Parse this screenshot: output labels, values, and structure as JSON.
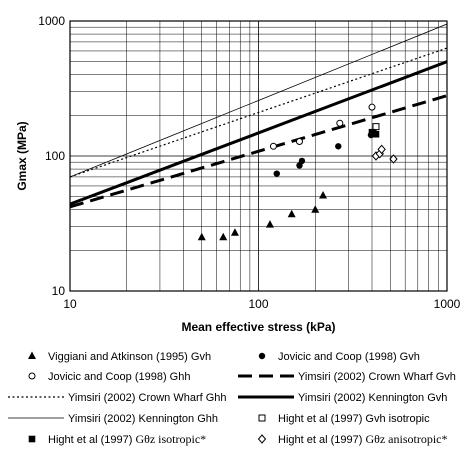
{
  "chart_data": {
    "type": "scatter",
    "title": "",
    "xlabel": "Mean effective stress (kPa)",
    "ylabel": "Gmax (MPa)",
    "xscale": "log",
    "yscale": "log",
    "xlim": [
      10,
      1000
    ],
    "ylim": [
      10,
      1000
    ],
    "grid": true,
    "x_tick_labels": [
      "10",
      "100",
      "1000"
    ],
    "y_tick_labels": [
      "10",
      "100",
      "1000"
    ],
    "legend_position": "below plot",
    "series": [
      {
        "name": "Viggiani and Atkinson (1995) Gvh",
        "kind": "points",
        "marker": "triangle",
        "x": [
          50,
          65,
          75,
          115,
          150,
          200,
          220
        ],
        "y": [
          25,
          25,
          27,
          31,
          37,
          40,
          51
        ]
      },
      {
        "name": "Jovicic and Coop (1998) Gvh",
        "kind": "points",
        "marker": "filled-circle",
        "x": [
          125,
          165,
          170,
          265,
          395,
          410
        ],
        "y": [
          74,
          85,
          92,
          118,
          143,
          150
        ]
      },
      {
        "name": "Jovicic and Coop (1998) Ghh",
        "kind": "points",
        "marker": "open-circle",
        "x": [
          120,
          165,
          270,
          400
        ],
        "y": [
          118,
          128,
          175,
          230
        ]
      },
      {
        "name": "Yimsiri (2002) Crown Wharf Gvh",
        "kind": "line",
        "style": "long-dash",
        "x": [
          10,
          1000
        ],
        "y": [
          42,
          280
        ]
      },
      {
        "name": "Yimsiri (2002) Crown Wharf Ghh",
        "kind": "line",
        "style": "dotted",
        "x": [
          10,
          1000
        ],
        "y": [
          70,
          630
        ]
      },
      {
        "name": "Yimsiri (2002) Kennington Gvh",
        "kind": "line",
        "style": "thick-solid",
        "x": [
          10,
          1000
        ],
        "y": [
          44,
          500
        ]
      },
      {
        "name": "Yimsiri (2002) Kennington Ghh",
        "kind": "line",
        "style": "thin-solid",
        "x": [
          10,
          1000
        ],
        "y": [
          70,
          950
        ]
      },
      {
        "name": "Hight et al (1997) Gvh isotropic",
        "kind": "points",
        "marker": "open-square",
        "x": [
          420
        ],
        "y": [
          165
        ]
      },
      {
        "name": "Hight et al (1997) Gθz isotropic*",
        "kind": "points",
        "marker": "filled-square",
        "x": [
          400,
          420
        ],
        "y": [
          150,
          145
        ]
      },
      {
        "name": "Hight et al (1997) Gθz anisotropic*",
        "kind": "points",
        "marker": "open-diamond",
        "x": [
          420,
          440,
          450,
          520
        ],
        "y": [
          100,
          104,
          112,
          95
        ]
      }
    ]
  },
  "legend": {
    "items": [
      {
        "col": 0,
        "row": 0,
        "marker": "triangle",
        "label": "Viggiani and Atkinson (1995) Gvh"
      },
      {
        "col": 1,
        "row": 0,
        "marker": "filled-circle",
        "label": "Jovicic and Coop (1998) Gvh"
      },
      {
        "col": 0,
        "row": 1,
        "marker": "open-circle",
        "label": "Jovicic and Coop (1998) Ghh"
      },
      {
        "col": 1,
        "row": 1,
        "marker": "long-dash",
        "label": "Yimsiri (2002) Crown Wharf Gvh"
      },
      {
        "col": 0,
        "row": 2,
        "marker": "dotted",
        "label": "Yimsiri (2002) Crown Wharf Ghh"
      },
      {
        "col": 1,
        "row": 2,
        "marker": "thick-solid",
        "label": "Yimsiri (2002) Kennington Gvh"
      },
      {
        "col": 0,
        "row": 3,
        "marker": "thin-solid",
        "label": "Yimsiri (2002) Kennington Ghh"
      },
      {
        "col": 1,
        "row": 3,
        "marker": "open-square",
        "label": "Hight et al (1997) Gvh isotropic"
      },
      {
        "col": 0,
        "row": 4,
        "marker": "filled-square",
        "label": "Hight et al (1997) ",
        "label_serif": "Gθz isotropic*"
      },
      {
        "col": 1,
        "row": 4,
        "marker": "open-diamond",
        "label": "Hight et al (1997) ",
        "label_serif": "Gθz anisotropic*"
      }
    ]
  }
}
